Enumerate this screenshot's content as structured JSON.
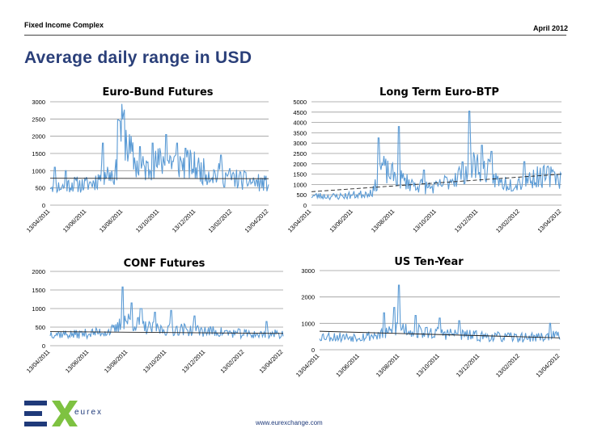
{
  "header": {
    "left_label": "Fixed Income Complex",
    "date_label": "April 2012"
  },
  "title": "Average daily range in USD",
  "footer": {
    "url": "www.eurexchange.com",
    "brand": "eurex"
  },
  "colors": {
    "series": "#5b9bd5",
    "trend": "#222222",
    "grid": "#9a9a9a",
    "title": "#2a3f79"
  },
  "chart_data": [
    {
      "type": "line",
      "title": "Euro-Bund Futures",
      "x_ticks": [
        "13/04/2011",
        "13/06/2011",
        "13/08/2011",
        "13/10/2011",
        "13/12/2011",
        "13/02/2012",
        "13/04/2012"
      ],
      "y_ticks": [
        0,
        500,
        1000,
        1500,
        2000,
        2500,
        3000
      ],
      "ylim": [
        0,
        3000
      ],
      "trend": [
        780,
        770
      ],
      "profile": [
        [
          0,
          600
        ],
        [
          0.05,
          520
        ],
        [
          0.1,
          620
        ],
        [
          0.15,
          580
        ],
        [
          0.2,
          660
        ],
        [
          0.25,
          950
        ],
        [
          0.3,
          900
        ],
        [
          0.33,
          2450
        ],
        [
          0.36,
          1600
        ],
        [
          0.4,
          1100
        ],
        [
          0.45,
          1050
        ],
        [
          0.5,
          1250
        ],
        [
          0.55,
          1300
        ],
        [
          0.6,
          1200
        ],
        [
          0.65,
          1150
        ],
        [
          0.7,
          980
        ],
        [
          0.75,
          900
        ],
        [
          0.8,
          850
        ],
        [
          0.85,
          760
        ],
        [
          0.9,
          700
        ],
        [
          0.95,
          650
        ],
        [
          1,
          620
        ]
      ],
      "spikes": [
        [
          0.02,
          1100
        ],
        [
          0.07,
          1000
        ],
        [
          0.24,
          1800
        ],
        [
          0.31,
          2480
        ],
        [
          0.32,
          2450
        ],
        [
          0.41,
          1700
        ],
        [
          0.47,
          1800
        ],
        [
          0.53,
          2050
        ],
        [
          0.58,
          1800
        ],
        [
          0.62,
          1650
        ],
        [
          0.78,
          1450
        ]
      ],
      "seed": 11
    },
    {
      "type": "line",
      "title": "Long Term Euro-BTP",
      "x_ticks": [
        "13/04/2011",
        "13/06/2011",
        "13/08/2011",
        "13/10/2011",
        "13/12/2011",
        "13/02/2012",
        "13/04/2012"
      ],
      "y_ticks": [
        0,
        500,
        1000,
        1500,
        2000,
        2500,
        3000,
        3500,
        4000,
        4500,
        5000
      ],
      "ylim": [
        0,
        5000
      ],
      "trend": [
        650,
        1500
      ],
      "profile": [
        [
          0,
          450
        ],
        [
          0.1,
          420
        ],
        [
          0.2,
          520
        ],
        [
          0.25,
          700
        ],
        [
          0.28,
          1900
        ],
        [
          0.3,
          1600
        ],
        [
          0.35,
          1300
        ],
        [
          0.4,
          1050
        ],
        [
          0.45,
          900
        ],
        [
          0.5,
          850
        ],
        [
          0.55,
          1200
        ],
        [
          0.6,
          1550
        ],
        [
          0.65,
          2000
        ],
        [
          0.7,
          1700
        ],
        [
          0.75,
          1100
        ],
        [
          0.8,
          1050
        ],
        [
          0.85,
          1200
        ],
        [
          0.9,
          1350
        ],
        [
          0.95,
          1400
        ],
        [
          1,
          1300
        ]
      ],
      "spikes": [
        [
          0.27,
          3250
        ],
        [
          0.35,
          3800
        ],
        [
          0.45,
          1700
        ],
        [
          0.63,
          4550
        ],
        [
          0.68,
          2900
        ],
        [
          0.72,
          2600
        ],
        [
          0.85,
          2100
        ],
        [
          0.97,
          1600
        ]
      ],
      "seed": 23
    },
    {
      "type": "line",
      "title": "CONF Futures",
      "x_ticks": [
        "13/04/2011",
        "13/06/2011",
        "13/08/2011",
        "13/10/2011",
        "13/12/2011",
        "13/02/2012",
        "13/04/2012"
      ],
      "y_ticks": [
        0,
        500,
        1000,
        1500,
        2000
      ],
      "ylim": [
        0,
        2000
      ],
      "trend": [
        380,
        330
      ],
      "profile": [
        [
          0,
          330
        ],
        [
          0.1,
          300
        ],
        [
          0.2,
          350
        ],
        [
          0.28,
          420
        ],
        [
          0.32,
          700
        ],
        [
          0.36,
          620
        ],
        [
          0.4,
          500
        ],
        [
          0.45,
          450
        ],
        [
          0.5,
          430
        ],
        [
          0.55,
          450
        ],
        [
          0.6,
          420
        ],
        [
          0.7,
          380
        ],
        [
          0.8,
          330
        ],
        [
          0.9,
          300
        ],
        [
          1,
          320
        ]
      ],
      "spikes": [
        [
          0.31,
          1580
        ],
        [
          0.35,
          1150
        ],
        [
          0.39,
          1000
        ],
        [
          0.45,
          900
        ],
        [
          0.52,
          950
        ],
        [
          0.62,
          800
        ],
        [
          0.93,
          650
        ]
      ],
      "seed": 37
    },
    {
      "type": "line",
      "title": "US Ten-Year",
      "x_ticks": [
        "13/04/2011",
        "13/06/2011",
        "13/08/2011",
        "13/10/2011",
        "13/12/2011",
        "13/02/2012",
        "13/04/2012"
      ],
      "y_ticks": [
        0,
        1000,
        2000,
        3000
      ],
      "ylim": [
        0,
        3000
      ],
      "trend": [
        700,
        450
      ],
      "profile": [
        [
          0,
          520
        ],
        [
          0.1,
          480
        ],
        [
          0.2,
          520
        ],
        [
          0.28,
          600
        ],
        [
          0.33,
          900
        ],
        [
          0.37,
          750
        ],
        [
          0.45,
          650
        ],
        [
          0.55,
          600
        ],
        [
          0.65,
          520
        ],
        [
          0.75,
          480
        ],
        [
          0.85,
          460
        ],
        [
          0.95,
          500
        ],
        [
          1,
          520
        ]
      ],
      "spikes": [
        [
          0.33,
          2450
        ],
        [
          0.31,
          1600
        ],
        [
          0.27,
          1400
        ],
        [
          0.4,
          1300
        ],
        [
          0.5,
          1200
        ],
        [
          0.58,
          1100
        ],
        [
          0.96,
          1000
        ]
      ],
      "seed": 53
    }
  ]
}
